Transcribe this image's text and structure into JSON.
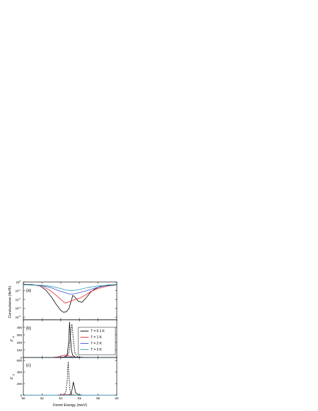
{
  "chart_data": [
    {
      "type": "line",
      "panel_label": "(a)",
      "ylabel": "Conductance (4e²/h)",
      "yscale": "log",
      "ylim": [
        5e-05,
        1
      ],
      "yticks": [
        {
          "v": 1,
          "m": "10",
          "e": "0"
        },
        {
          "v": 0.1,
          "m": "10",
          "e": "-1"
        },
        {
          "v": 0.01,
          "m": "10",
          "e": "-2"
        },
        {
          "v": 0.001,
          "m": "10",
          "e": "-3"
        },
        {
          "v": 0.0001,
          "m": "10",
          "e": "-4"
        }
      ],
      "xlim": [
        50,
        60
      ],
      "series": [
        {
          "color": "#000000",
          "x": [
            50,
            51,
            51.8,
            52.4,
            53,
            53.5,
            54,
            54.3,
            54.6,
            54.9,
            55.1,
            55.3,
            55.5,
            55.9,
            56.3,
            56.8,
            57.2,
            57.6,
            58.2,
            59,
            60
          ],
          "y": [
            0.55,
            0.5,
            0.35,
            0.12,
            0.02,
            0.003,
            0.0006,
            0.00035,
            0.0004,
            0.001,
            0.006,
            0.03,
            0.02,
            0.006,
            0.005,
            0.02,
            0.07,
            0.15,
            0.3,
            0.45,
            0.5
          ]
        },
        {
          "color": "#e8231f",
          "x": [
            50,
            51,
            52,
            52.8,
            53.4,
            54,
            54.5,
            55,
            55.5,
            56,
            56.6,
            57.2,
            58,
            59,
            60
          ],
          "y": [
            0.5,
            0.45,
            0.35,
            0.12,
            0.04,
            0.01,
            0.004,
            0.006,
            0.01,
            0.014,
            0.03,
            0.08,
            0.18,
            0.35,
            0.45
          ]
        },
        {
          "color": "#3a4fd8",
          "x": [
            50,
            51,
            52,
            53,
            53.8,
            54.5,
            55,
            55.6,
            56.2,
            57,
            57.8,
            58.6,
            59.4,
            60
          ],
          "y": [
            0.5,
            0.45,
            0.38,
            0.22,
            0.1,
            0.06,
            0.04,
            0.05,
            0.07,
            0.12,
            0.22,
            0.35,
            0.42,
            0.45
          ]
        },
        {
          "color": "#2a9fb0",
          "x": [
            50,
            51,
            52,
            53,
            54,
            54.6,
            55.2,
            56,
            57,
            58,
            59,
            60
          ],
          "y": [
            0.5,
            0.45,
            0.42,
            0.32,
            0.18,
            0.12,
            0.1,
            0.14,
            0.25,
            0.35,
            0.42,
            0.45
          ]
        }
      ]
    },
    {
      "type": "line",
      "panel_label": "(b)",
      "ylabel": "F",
      "ylabel_sub": "R",
      "ylim": [
        0,
        500
      ],
      "yticks": [
        0,
        100,
        200,
        300,
        400
      ],
      "xlim": [
        50,
        60
      ],
      "legend": {
        "placement": "right",
        "entries": [
          {
            "label": "T = 0.1 K",
            "color": "#000000"
          },
          {
            "label": "T = 1 K",
            "color": "#e8231f"
          },
          {
            "label": "T = 2 K",
            "color": "#3a4fd8"
          },
          {
            "label": "T = 3 K",
            "color": "#2a9fb0"
          }
        ]
      },
      "series": [
        {
          "color": "#000000",
          "dash": false,
          "x": [
            50,
            53.5,
            54.2,
            54.5,
            54.7,
            54.85,
            54.95,
            55.05,
            55.15,
            55.3,
            55.6,
            56.5,
            60
          ],
          "y": [
            0,
            0,
            3,
            10,
            40,
            200,
            470,
            260,
            90,
            25,
            5,
            0,
            0
          ]
        },
        {
          "color": "#000000",
          "dash": true,
          "x": [
            50,
            53.5,
            54.3,
            54.7,
            54.9,
            55.05,
            55.2,
            55.35,
            55.5,
            55.8,
            56.5,
            60
          ],
          "y": [
            0,
            0,
            5,
            20,
            80,
            300,
            440,
            250,
            70,
            10,
            0,
            0
          ]
        },
        {
          "color": "#e8231f",
          "dash": false,
          "x": [
            50,
            53,
            53.7,
            54.1,
            54.4,
            54.7,
            55,
            55.4,
            56,
            60
          ],
          "y": [
            0,
            0,
            8,
            22,
            30,
            26,
            15,
            6,
            1,
            0
          ]
        },
        {
          "color": "#3a4fd8",
          "dash": false,
          "x": [
            50,
            53,
            54,
            54.8,
            55.6,
            56.5,
            60
          ],
          "y": [
            0,
            0,
            3,
            5,
            3,
            1,
            0
          ]
        },
        {
          "color": "#2a9fb0",
          "dash": false,
          "x": [
            50,
            53,
            54,
            55,
            56,
            60
          ],
          "y": [
            0,
            0,
            1.5,
            2,
            1,
            0
          ]
        }
      ]
    },
    {
      "type": "line",
      "panel_label": "(c)",
      "ylabel": "F",
      "ylabel_sub": "D",
      "ylim": [
        0,
        650
      ],
      "yticks": [
        0,
        200,
        400,
        600
      ],
      "xlim": [
        50,
        60
      ],
      "xlabel": "Fermi Energy (meV)",
      "xticks": [
        50,
        52,
        54,
        56,
        58,
        60
      ],
      "series": [
        {
          "color": "#000000",
          "dash": true,
          "x": [
            50,
            53.8,
            54.3,
            54.55,
            54.7,
            54.8,
            54.9,
            55.0,
            55.2,
            55.5,
            60
          ],
          "y": [
            0,
            0,
            10,
            60,
            250,
            580,
            300,
            80,
            10,
            0,
            0
          ]
        },
        {
          "color": "#000000",
          "dash": false,
          "x": [
            50,
            54.5,
            54.9,
            55.1,
            55.25,
            55.35,
            55.45,
            55.6,
            55.9,
            56.5,
            60
          ],
          "y": [
            0,
            0,
            5,
            30,
            120,
            230,
            150,
            40,
            8,
            0,
            0
          ]
        },
        {
          "color": "#e8231f",
          "dash": false,
          "x": [
            50,
            53.5,
            54,
            54.4,
            54.8,
            55.2,
            56,
            60
          ],
          "y": [
            0,
            0,
            8,
            14,
            10,
            5,
            1,
            0
          ]
        },
        {
          "color": "#3a4fd8",
          "dash": false,
          "x": [
            50,
            53.5,
            54.5,
            55.5,
            60
          ],
          "y": [
            0,
            0,
            2,
            1,
            0
          ]
        },
        {
          "color": "#2a9fb0",
          "dash": false,
          "x": [
            50,
            53.5,
            54.5,
            55.5,
            60
          ],
          "y": [
            0,
            0,
            1,
            0.5,
            0
          ]
        }
      ]
    }
  ]
}
